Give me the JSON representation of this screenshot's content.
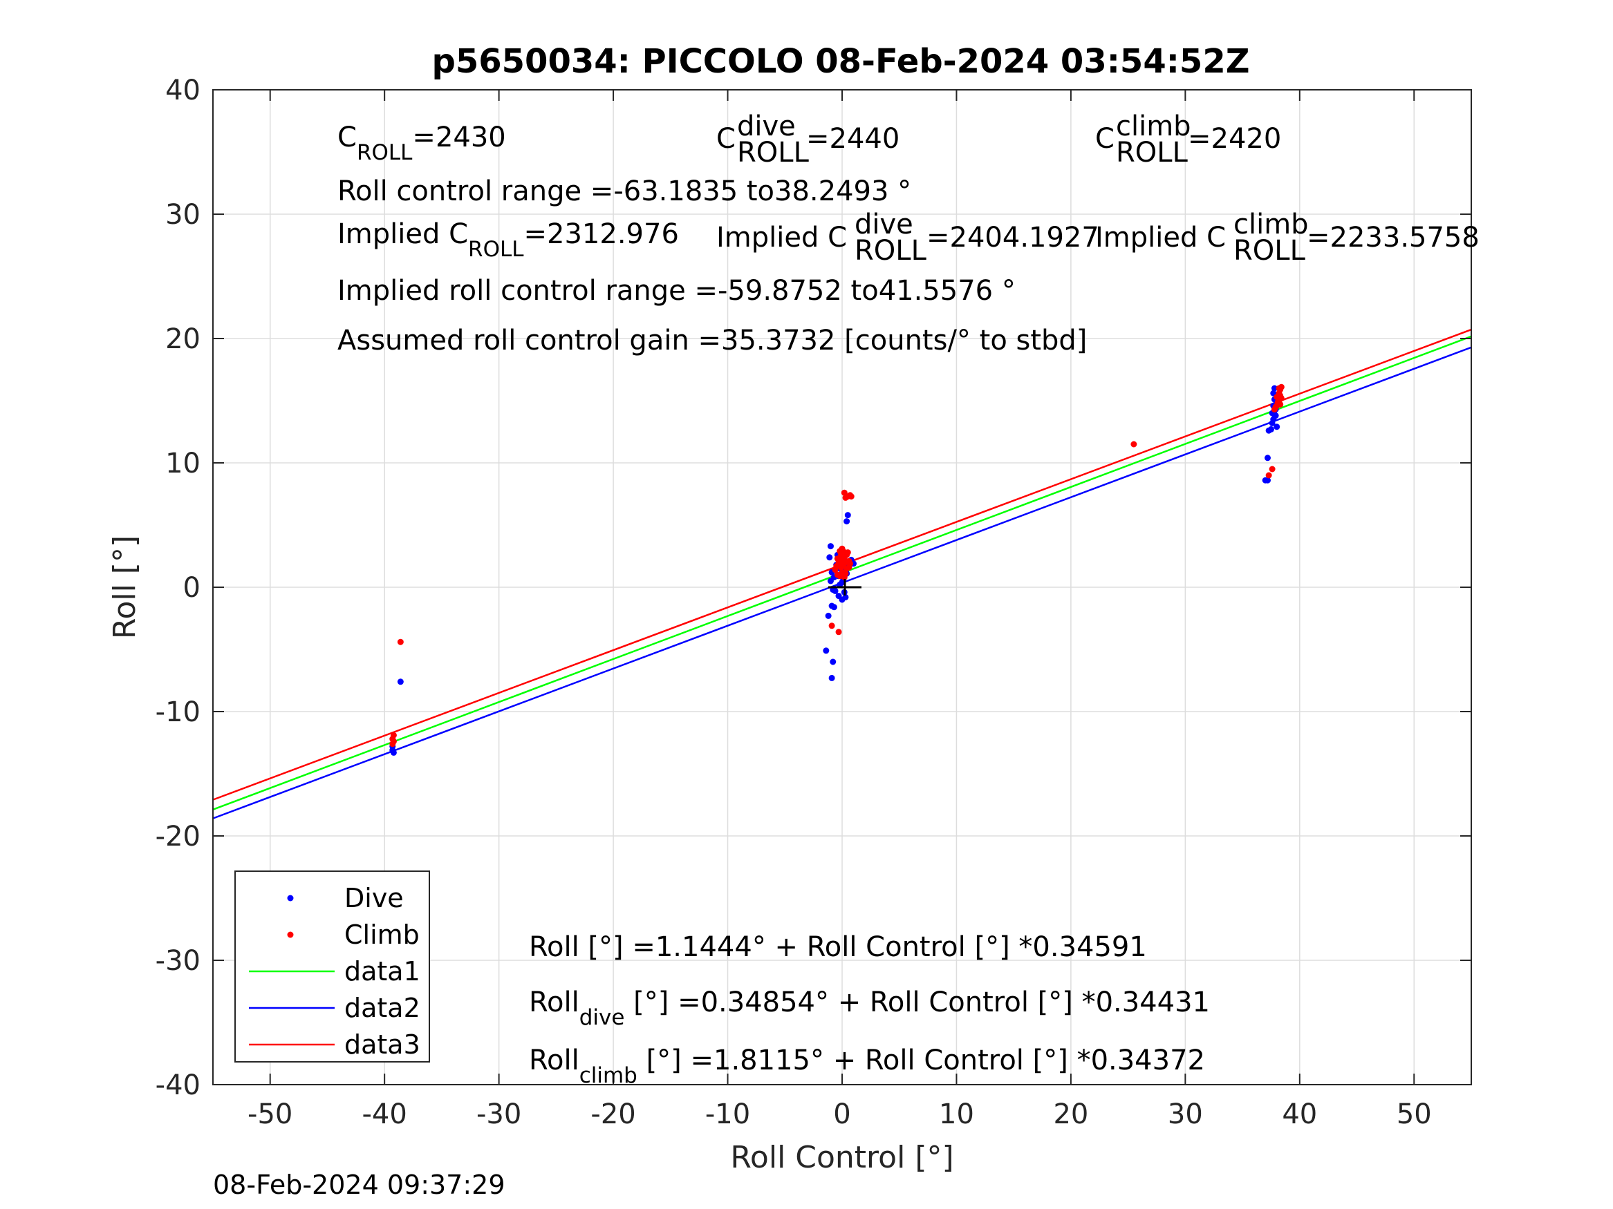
{
  "chart_data": {
    "type": "scatter",
    "title": "p5650034: PICCOLO 08-Feb-2024 03:54:52Z",
    "xlabel": "Roll Control [°]",
    "ylabel": "Roll [°]",
    "xlim": [
      -55,
      55
    ],
    "ylim": [
      -40,
      40
    ],
    "xticks": [
      -50,
      -40,
      -30,
      -20,
      -10,
      0,
      10,
      20,
      30,
      40,
      50
    ],
    "yticks": [
      -40,
      -30,
      -20,
      -10,
      0,
      10,
      20,
      30,
      40
    ],
    "grid": true,
    "legend_position": "bottom-left",
    "annotations": {
      "c_roll": "C",
      "c_roll_sub": "ROLL",
      "c_roll_value": "=2430",
      "c_dive": "C",
      "c_dive_sup": "dive",
      "c_dive_sub": "ROLL",
      "c_dive_value": "=2440",
      "c_climb": "C",
      "c_climb_sup": "climb",
      "c_climb_sub": "ROLL",
      "c_climb_value": "=2420",
      "roll_range": "Roll control range =-63.1835 to38.2493 °",
      "implied_c_roll": "Implied C",
      "implied_c_roll_sub": "ROLL",
      "implied_c_roll_value": "=2312.976",
      "implied_c_dive": "Implied C",
      "implied_c_dive_sup": "dive",
      "implied_c_dive_sub": "ROLL",
      "implied_c_dive_value": "=2404.1927",
      "implied_c_climb": "Implied C",
      "implied_c_climb_sup": "climb",
      "implied_c_climb_sub": "ROLL",
      "implied_c_climb_value": "=2233.5758",
      "implied_range": "Implied roll control range =-59.8752 to41.5576 °",
      "gain": "Assumed roll control gain =35.3732 [counts/° to stbd]",
      "eq_all": "Roll [°] =1.1444° + Roll Control [°] *0.34591",
      "eq_dive_a": "Roll",
      "eq_dive_sub": "dive",
      "eq_dive_b": " [°] =0.34854° + Roll Control [°] *0.34431",
      "eq_climb_a": "Roll",
      "eq_climb_sub": "climb",
      "eq_climb_b": " [°] =1.8115° + Roll Control [°] *0.34372"
    },
    "timestamp": "08-Feb-2024 09:37:29",
    "series": [
      {
        "name": "Dive",
        "kind": "points",
        "color": "#0000ff",
        "points": [
          [
            -39.3,
            -12.8
          ],
          [
            -39.3,
            -13.1
          ],
          [
            -39.2,
            -13.3
          ],
          [
            -38.6,
            -7.6
          ],
          [
            -1.0,
            3.3
          ],
          [
            -1.1,
            2.4
          ],
          [
            -0.9,
            1.2
          ],
          [
            -1.0,
            0.5
          ],
          [
            -0.8,
            -0.2
          ],
          [
            -0.9,
            -1.5
          ],
          [
            -0.7,
            -1.6
          ],
          [
            -1.2,
            -2.3
          ],
          [
            -1.4,
            -5.1
          ],
          [
            -0.8,
            -6.0
          ],
          [
            -0.9,
            -7.3
          ],
          [
            -0.3,
            -0.7
          ],
          [
            0.0,
            -1.0
          ],
          [
            -0.2,
            0.2
          ],
          [
            0.1,
            0.7
          ],
          [
            0.2,
            1.4
          ],
          [
            0.3,
            2.1
          ],
          [
            0.4,
            5.3
          ],
          [
            0.5,
            5.8
          ],
          [
            -0.5,
            1.8
          ],
          [
            -0.4,
            2.6
          ],
          [
            -0.6,
            -0.3
          ],
          [
            -0.3,
            0.9
          ],
          [
            0.2,
            -0.4
          ],
          [
            0.4,
            1.1
          ],
          [
            0.6,
            1.7
          ],
          [
            0.8,
            2.2
          ],
          [
            1.0,
            1.9
          ],
          [
            -0.2,
            1.5
          ],
          [
            0.0,
            0.4
          ],
          [
            -0.7,
            0.8
          ],
          [
            0.3,
            -0.8
          ],
          [
            37.2,
            10.4
          ],
          [
            37.0,
            8.6
          ],
          [
            37.2,
            8.6
          ],
          [
            37.3,
            12.6
          ],
          [
            37.5,
            12.7
          ],
          [
            37.6,
            13.2
          ],
          [
            37.7,
            13.5
          ],
          [
            37.6,
            14.0
          ],
          [
            37.7,
            14.6
          ],
          [
            37.8,
            15.1
          ],
          [
            37.8,
            16.0
          ],
          [
            37.9,
            13.8
          ],
          [
            38.0,
            12.9
          ],
          [
            37.9,
            14.3
          ],
          [
            37.7,
            15.6
          ],
          [
            37.8,
            13.9
          ]
        ]
      },
      {
        "name": "Climb",
        "kind": "points",
        "color": "#ff0000",
        "points": [
          [
            -39.2,
            -11.9
          ],
          [
            -39.3,
            -12.2
          ],
          [
            -39.2,
            -12.4
          ],
          [
            -39.3,
            -12.6
          ],
          [
            -38.6,
            -4.4
          ],
          [
            -0.9,
            -3.1
          ],
          [
            -0.3,
            -3.6
          ],
          [
            -0.4,
            1.0
          ],
          [
            -0.5,
            1.7
          ],
          [
            -0.4,
            2.3
          ],
          [
            -0.6,
            1.4
          ],
          [
            -0.2,
            0.9
          ],
          [
            -0.1,
            2.6
          ],
          [
            0.0,
            3.1
          ],
          [
            0.1,
            1.8
          ],
          [
            0.2,
            2.4
          ],
          [
            0.3,
            2.0
          ],
          [
            0.4,
            1.5
          ],
          [
            0.5,
            2.8
          ],
          [
            0.6,
            2.1
          ],
          [
            0.2,
            7.6
          ],
          [
            0.3,
            7.2
          ],
          [
            0.5,
            7.3
          ],
          [
            0.7,
            7.4
          ],
          [
            0.8,
            7.3
          ],
          [
            -0.3,
            2.0
          ],
          [
            0.0,
            1.2
          ],
          [
            0.1,
            2.9
          ],
          [
            0.3,
            1.1
          ],
          [
            0.6,
            1.6
          ],
          [
            -0.1,
            1.6
          ],
          [
            0.2,
            0.8
          ],
          [
            0.4,
            2.6
          ],
          [
            0.7,
            1.9
          ],
          [
            -0.2,
            2.9
          ],
          [
            0.0,
            2.2
          ],
          [
            25.5,
            11.5
          ],
          [
            37.3,
            9.0
          ],
          [
            37.6,
            9.5
          ],
          [
            37.8,
            14.3
          ],
          [
            38.0,
            14.6
          ],
          [
            38.1,
            14.8
          ],
          [
            38.2,
            15.0
          ],
          [
            38.3,
            15.4
          ],
          [
            38.3,
            15.9
          ],
          [
            38.4,
            16.1
          ],
          [
            38.2,
            15.6
          ],
          [
            38.1,
            14.9
          ],
          [
            38.4,
            15.2
          ],
          [
            38.3,
            14.7
          ],
          [
            38.0,
            15.3
          ],
          [
            38.2,
            16.0
          ],
          [
            37.9,
            14.5
          ]
        ]
      },
      {
        "name": "data1",
        "kind": "line",
        "color": "#00ff00",
        "x": [
          -55,
          55
        ],
        "y": [
          -17.88,
          20.17
        ]
      },
      {
        "name": "data2",
        "kind": "line",
        "color": "#0000ff",
        "x": [
          -55,
          55
        ],
        "y": [
          -18.59,
          19.29
        ]
      },
      {
        "name": "data3",
        "kind": "line",
        "color": "#ff0000",
        "x": [
          -55,
          55
        ],
        "y": [
          -17.09,
          20.72
        ]
      }
    ]
  }
}
